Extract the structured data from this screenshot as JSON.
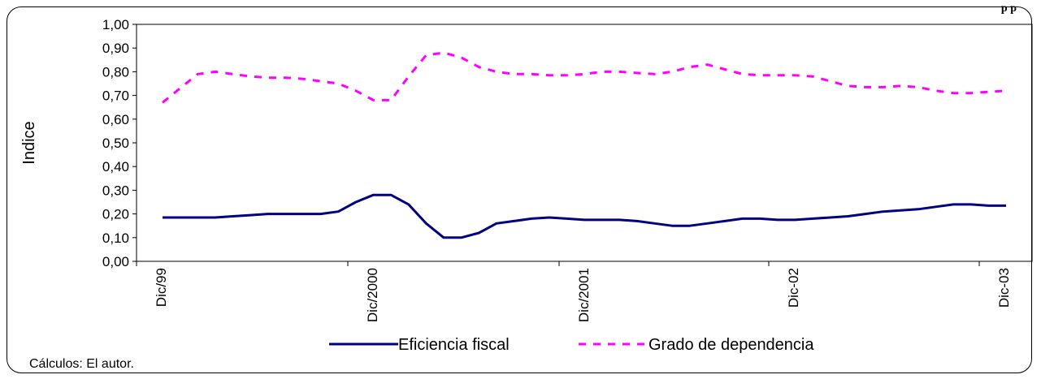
{
  "clipped_header": "p      p",
  "source_note": "Cálculos: El autor.",
  "colors": {
    "efficiency": "#000080",
    "dependency": "#FF00FF"
  },
  "chart_data": {
    "type": "line",
    "title": "",
    "xlabel": "",
    "ylabel": "Indice",
    "ylim": [
      0,
      1
    ],
    "yticks": [
      "0,00",
      "0,10",
      "0,20",
      "0,30",
      "0,40",
      "0,50",
      "0,60",
      "0,70",
      "0,80",
      "0,90",
      "1,00"
    ],
    "x_tick_labels": [
      "Dic/99",
      "Dic/2000",
      "Dic/2001",
      "Dic-02",
      "Dic-03"
    ],
    "x_tick_index": [
      0,
      12,
      24,
      36,
      48
    ],
    "grid": false,
    "legend": "bottom-center",
    "series": [
      {
        "name": "Eficiencia fiscal",
        "style": "solid",
        "values": [
          0.185,
          0.185,
          0.185,
          0.185,
          0.19,
          0.195,
          0.2,
          0.2,
          0.2,
          0.2,
          0.21,
          0.25,
          0.28,
          0.28,
          0.24,
          0.16,
          0.1,
          0.1,
          0.12,
          0.16,
          0.17,
          0.18,
          0.185,
          0.18,
          0.175,
          0.175,
          0.175,
          0.17,
          0.16,
          0.15,
          0.15,
          0.16,
          0.17,
          0.18,
          0.18,
          0.175,
          0.175,
          0.18,
          0.185,
          0.19,
          0.2,
          0.21,
          0.215,
          0.22,
          0.23,
          0.24,
          0.24,
          0.235,
          0.235
        ]
      },
      {
        "name": "Grado de dependencia",
        "style": "dashed",
        "values": [
          0.67,
          0.73,
          0.79,
          0.8,
          0.79,
          0.78,
          0.775,
          0.775,
          0.77,
          0.76,
          0.75,
          0.72,
          0.68,
          0.68,
          0.78,
          0.87,
          0.88,
          0.86,
          0.82,
          0.8,
          0.79,
          0.79,
          0.785,
          0.785,
          0.79,
          0.8,
          0.8,
          0.795,
          0.79,
          0.8,
          0.82,
          0.83,
          0.81,
          0.79,
          0.785,
          0.785,
          0.785,
          0.78,
          0.76,
          0.74,
          0.735,
          0.735,
          0.74,
          0.735,
          0.72,
          0.71,
          0.71,
          0.715,
          0.72
        ]
      }
    ]
  }
}
